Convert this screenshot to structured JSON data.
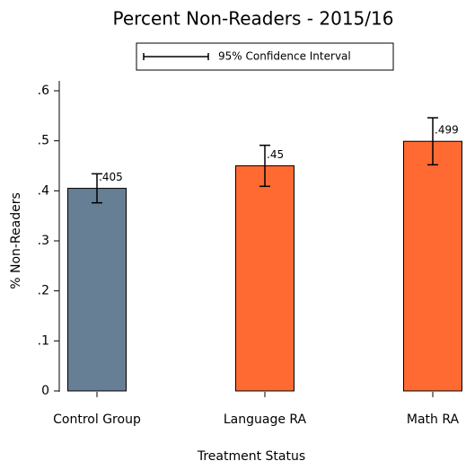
{
  "chart_data": {
    "type": "bar",
    "title": "Percent Non-Readers - 2015/16",
    "legend": "95% Confidence Interval",
    "categories": [
      "Control Group",
      "Language RA",
      "Math RA"
    ],
    "values": [
      0.405,
      0.45,
      0.499
    ],
    "value_labels": [
      ".405",
      ".45",
      ".499"
    ],
    "errors": [
      0.029,
      0.041,
      0.047
    ],
    "colors": [
      "#667f94",
      "#ff6a33",
      "#ff6a33"
    ],
    "xlabel": "Treatment Status",
    "ylabel": "% Non-Readers",
    "ylim": [
      0,
      0.6
    ],
    "yticks": [
      0,
      {
        "value": 0.1,
        "label": ".1"
      },
      {
        "value": 0.2,
        "label": ".2"
      },
      {
        "value": 0.3,
        "label": ".3"
      },
      {
        "value": 0.4,
        "label": ".4"
      },
      {
        "value": 0.5,
        "label": ".5"
      },
      {
        "value": 0.6,
        "label": ".6"
      }
    ]
  }
}
